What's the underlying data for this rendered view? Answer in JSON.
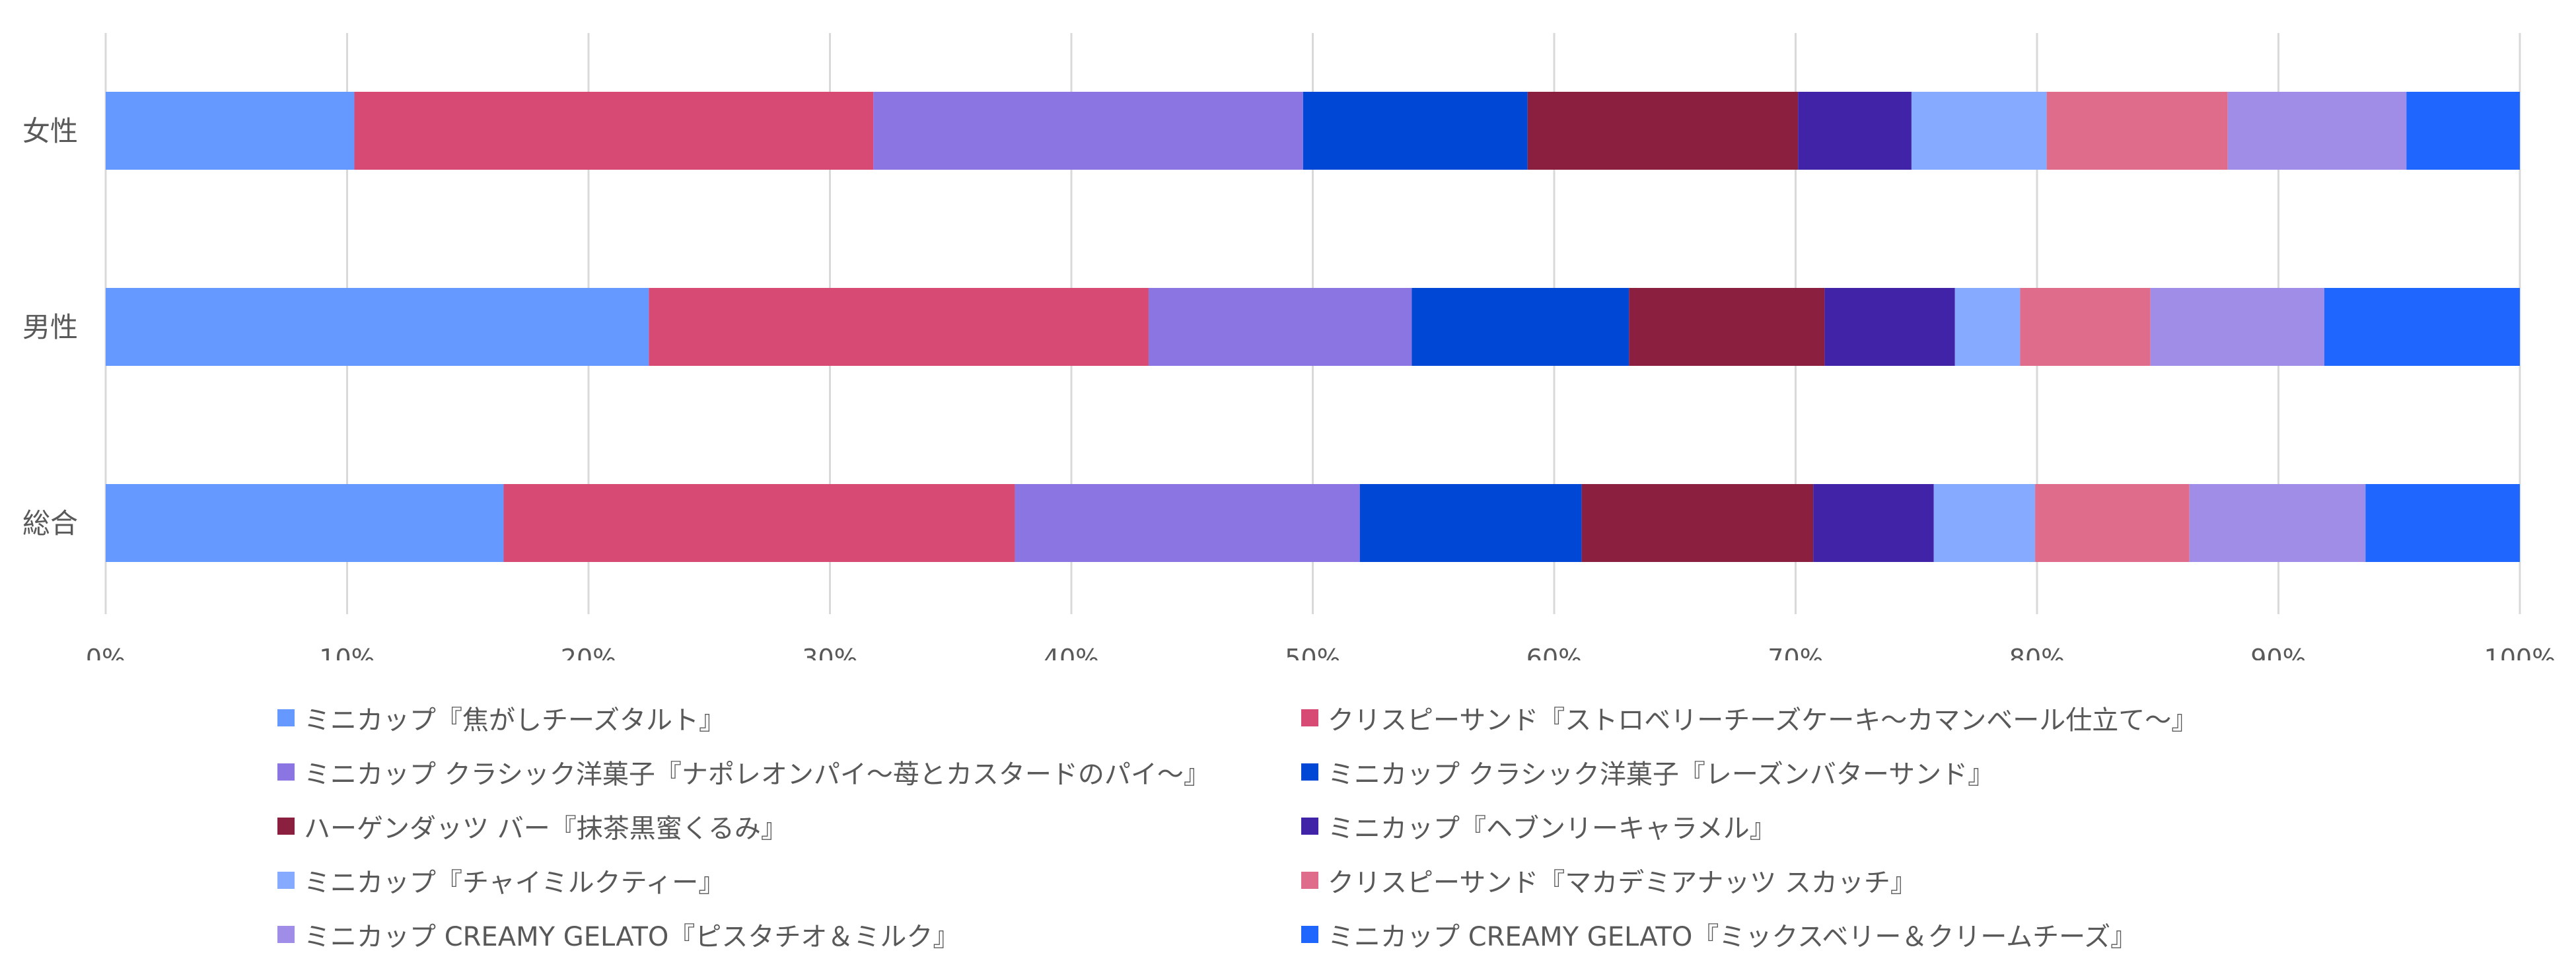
{
  "chart_data": {
    "type": "bar",
    "orientation": "horizontal",
    "stacked": "percent",
    "title": "",
    "xlabel": "",
    "ylabel": "",
    "xlim": [
      0,
      100
    ],
    "x_ticks": [
      "0%",
      "10%",
      "20%",
      "30%",
      "40%",
      "50%",
      "60%",
      "70%",
      "80%",
      "90%",
      "100%"
    ],
    "grid": true,
    "legend_position": "bottom",
    "categories": [
      "女性",
      "男性",
      "総合"
    ],
    "series": [
      {
        "name": "ミニカップ『焦がしチーズタルト』",
        "color": "#6699FF",
        "values": [
          10.3,
          22.5,
          16.5
        ]
      },
      {
        "name": "クリスピーサンド『ストロベリーチーズケーキ〜カマンベール仕立て〜』",
        "color": "#D64A73",
        "values": [
          21.5,
          20.7,
          21.2
        ]
      },
      {
        "name": "ミニカップ クラシック洋菓子『ナポレオンパイ〜苺とカスタードのパイ〜』",
        "color": "#8A75E2",
        "values": [
          17.8,
          10.9,
          14.3
        ]
      },
      {
        "name": "ミニカップ クラシック洋菓子『レーズンバターサンド』",
        "color": "#0047D6",
        "values": [
          9.3,
          9.0,
          9.2
        ]
      },
      {
        "name": "ハーゲンダッツ バー『抹茶黒蜜くるみ』",
        "color": "#8B1F3F",
        "values": [
          11.2,
          8.1,
          9.6
        ]
      },
      {
        "name": "ミニカップ『ヘブンリーキャラメル』",
        "color": "#4123A8",
        "values": [
          4.7,
          5.4,
          5.0
        ]
      },
      {
        "name": "ミニカップ『チャイミルクティー』",
        "color": "#85AAFF",
        "values": [
          5.6,
          2.7,
          4.2
        ]
      },
      {
        "name": "クリスピーサンド『マカデミアナッツ スカッチ』",
        "color": "#E06C8B",
        "values": [
          7.5,
          5.4,
          6.4
        ]
      },
      {
        "name": "ミニカップ CREAMY GELATO『ピスタチオ＆ミルク』",
        "color": "#A08DE8",
        "values": [
          7.4,
          7.2,
          7.3
        ]
      },
      {
        "name": "ミニカップ CREAMY GELATO『ミックスベリー＆クリームチーズ』",
        "color": "#1F66FF",
        "values": [
          4.7,
          8.1,
          6.4
        ]
      }
    ]
  }
}
